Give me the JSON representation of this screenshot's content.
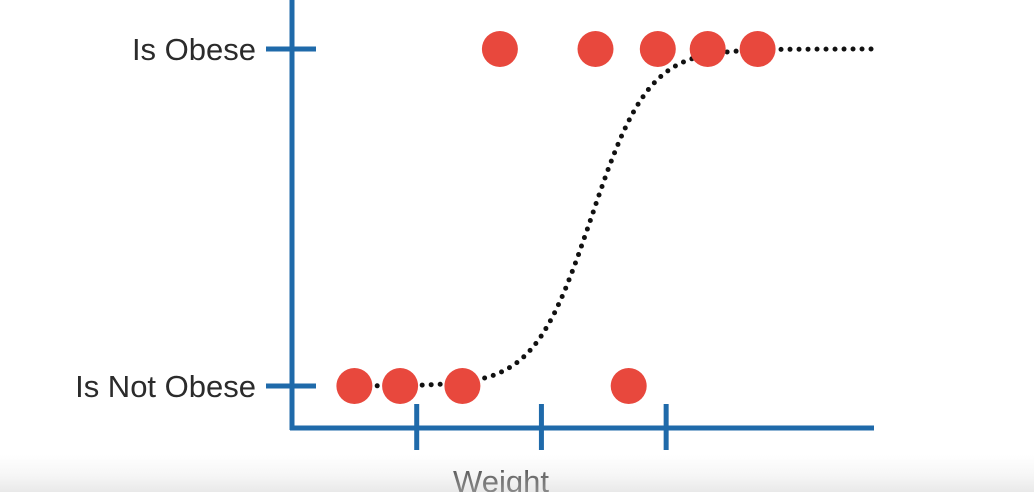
{
  "chart_data": {
    "type": "scatter",
    "title": "",
    "xlabel": "Weight",
    "ylabel": "",
    "x_tick_labels": [
      "",
      "",
      ""
    ],
    "y_tick_labels": [
      "Is Not Obese",
      "Is Obese"
    ],
    "x_ticks": [
      3,
      6,
      9
    ],
    "y_ticks": [
      0,
      1
    ],
    "xlim": [
      0,
      14
    ],
    "ylim": [
      -0.15,
      1.15
    ],
    "grid": false,
    "axis_color": "#1f6aaa",
    "points": [
      {
        "x": 1.5,
        "y": 0
      },
      {
        "x": 2.6,
        "y": 0
      },
      {
        "x": 4.1,
        "y": 0
      },
      {
        "x": 8.1,
        "y": 0
      },
      {
        "x": 5.0,
        "y": 1
      },
      {
        "x": 7.3,
        "y": 1
      },
      {
        "x": 8.8,
        "y": 1
      },
      {
        "x": 10.0,
        "y": 1
      },
      {
        "x": 11.2,
        "y": 1
      }
    ],
    "point_color": "#e8483d",
    "curve": {
      "type": "logistic",
      "midpoint": 7.2,
      "steepness": 1.45,
      "x_range": [
        1.4,
        14
      ],
      "color": "#111111",
      "style": "dotted"
    }
  }
}
